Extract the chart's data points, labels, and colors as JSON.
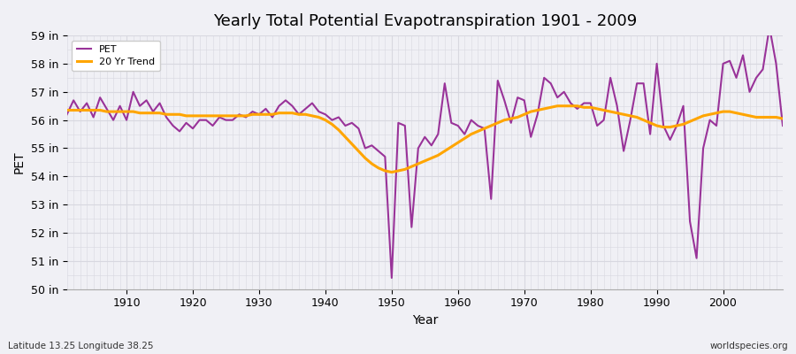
{
  "title": "Yearly Total Potential Evapotranspiration 1901 - 2009",
  "xlabel": "Year",
  "ylabel": "PET",
  "subtitle_left": "Latitude 13.25 Longitude 38.25",
  "subtitle_right": "worldspecies.org",
  "pet_color": "#993399",
  "trend_color": "#FFA500",
  "background_color": "#f0f0f5",
  "grid_color": "#d8d8e0",
  "ylim": [
    50,
    59
  ],
  "yticks": [
    50,
    51,
    52,
    53,
    54,
    55,
    56,
    57,
    58,
    59
  ],
  "ytick_labels": [
    "50 in",
    "51 in",
    "52 in",
    "53 in",
    "54 in",
    "55 in",
    "56 in",
    "57 in",
    "58 in",
    "59 in"
  ],
  "years": [
    1901,
    1902,
    1903,
    1904,
    1905,
    1906,
    1907,
    1908,
    1909,
    1910,
    1911,
    1912,
    1913,
    1914,
    1915,
    1916,
    1917,
    1918,
    1919,
    1920,
    1921,
    1922,
    1923,
    1924,
    1925,
    1926,
    1927,
    1928,
    1929,
    1930,
    1931,
    1932,
    1933,
    1934,
    1935,
    1936,
    1937,
    1938,
    1939,
    1940,
    1941,
    1942,
    1943,
    1944,
    1945,
    1946,
    1947,
    1948,
    1949,
    1950,
    1951,
    1952,
    1953,
    1954,
    1955,
    1956,
    1957,
    1958,
    1959,
    1960,
    1961,
    1962,
    1963,
    1964,
    1965,
    1966,
    1967,
    1968,
    1969,
    1970,
    1971,
    1972,
    1973,
    1974,
    1975,
    1976,
    1977,
    1978,
    1979,
    1980,
    1981,
    1982,
    1983,
    1984,
    1985,
    1986,
    1987,
    1988,
    1989,
    1990,
    1991,
    1992,
    1993,
    1994,
    1995,
    1996,
    1997,
    1998,
    1999,
    2000,
    2001,
    2002,
    2003,
    2004,
    2005,
    2006,
    2007,
    2008,
    2009
  ],
  "pet": [
    56.2,
    56.7,
    56.3,
    56.6,
    56.1,
    56.8,
    56.4,
    56.0,
    56.5,
    56.0,
    57.0,
    56.5,
    56.7,
    56.3,
    56.6,
    56.1,
    55.8,
    55.6,
    55.9,
    55.7,
    56.0,
    56.0,
    55.8,
    56.1,
    56.0,
    56.0,
    56.2,
    56.1,
    56.3,
    56.2,
    56.4,
    56.1,
    56.5,
    56.7,
    56.5,
    56.2,
    56.4,
    56.6,
    56.3,
    56.2,
    56.0,
    56.1,
    55.8,
    55.9,
    55.7,
    55.0,
    55.1,
    54.9,
    54.7,
    50.4,
    55.9,
    55.8,
    52.2,
    55.0,
    55.4,
    55.1,
    55.5,
    57.3,
    55.9,
    55.8,
    55.5,
    56.0,
    55.8,
    55.7,
    53.2,
    57.4,
    56.7,
    55.9,
    56.8,
    56.7,
    55.4,
    56.2,
    57.5,
    57.3,
    56.8,
    57.0,
    56.6,
    56.4,
    56.6,
    56.6,
    55.8,
    56.0,
    57.5,
    56.5,
    54.9,
    56.0,
    57.3,
    57.3,
    55.5,
    58.0,
    55.8,
    55.3,
    55.8,
    56.5,
    52.4,
    51.1,
    55.0,
    56.0,
    55.8,
    58.0,
    58.1,
    57.5,
    58.3,
    57.0,
    57.5,
    57.8,
    59.3,
    58.0,
    55.8
  ],
  "trend": [
    56.35,
    56.35,
    56.35,
    56.35,
    56.35,
    56.35,
    56.3,
    56.3,
    56.3,
    56.3,
    56.3,
    56.25,
    56.25,
    56.25,
    56.25,
    56.2,
    56.2,
    56.2,
    56.15,
    56.15,
    56.15,
    56.15,
    56.15,
    56.15,
    56.15,
    56.15,
    56.15,
    56.15,
    56.2,
    56.2,
    56.2,
    56.2,
    56.25,
    56.25,
    56.25,
    56.2,
    56.2,
    56.15,
    56.1,
    56.0,
    55.85,
    55.65,
    55.4,
    55.15,
    54.9,
    54.65,
    54.45,
    54.3,
    54.2,
    54.15,
    54.2,
    54.25,
    54.35,
    54.45,
    54.55,
    54.65,
    54.75,
    54.9,
    55.05,
    55.2,
    55.35,
    55.5,
    55.6,
    55.7,
    55.8,
    55.9,
    56.0,
    56.05,
    56.1,
    56.2,
    56.3,
    56.35,
    56.4,
    56.45,
    56.5,
    56.5,
    56.5,
    56.5,
    56.45,
    56.45,
    56.4,
    56.35,
    56.3,
    56.25,
    56.2,
    56.15,
    56.1,
    56.0,
    55.9,
    55.8,
    55.75,
    55.75,
    55.8,
    55.85,
    55.95,
    56.05,
    56.15,
    56.2,
    56.25,
    56.3,
    56.3,
    56.25,
    56.2,
    56.15,
    56.1,
    56.1,
    56.1,
    56.1,
    56.05
  ]
}
